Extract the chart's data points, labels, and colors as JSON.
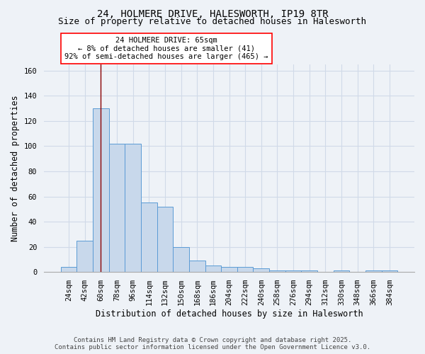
{
  "title_line1": "24, HOLMERE DRIVE, HALESWORTH, IP19 8TR",
  "title_line2": "Size of property relative to detached houses in Halesworth",
  "xlabel": "Distribution of detached houses by size in Halesworth",
  "ylabel": "Number of detached properties",
  "categories": [
    "24sqm",
    "42sqm",
    "60sqm",
    "78sqm",
    "96sqm",
    "114sqm",
    "132sqm",
    "150sqm",
    "168sqm",
    "186sqm",
    "204sqm",
    "222sqm",
    "240sqm",
    "258sqm",
    "276sqm",
    "294sqm",
    "312sqm",
    "330sqm",
    "348sqm",
    "366sqm",
    "384sqm"
  ],
  "values": [
    4,
    25,
    130,
    102,
    102,
    55,
    52,
    20,
    9,
    5,
    4,
    4,
    3,
    1,
    1,
    1,
    0,
    1,
    0,
    1,
    1
  ],
  "bar_color": "#c8d8eb",
  "bar_edge_color": "#5b9bd5",
  "vline_x": 2,
  "vline_color": "#8b0000",
  "annotation_text": "24 HOLMERE DRIVE: 65sqm\n← 8% of detached houses are smaller (41)\n92% of semi-detached houses are larger (465) →",
  "annotation_box_color": "white",
  "annotation_box_edge": "red",
  "ylim": [
    0,
    165
  ],
  "yticks": [
    0,
    20,
    40,
    60,
    80,
    100,
    120,
    140,
    160
  ],
  "background_color": "#eef2f7",
  "grid_color": "#d0dae8",
  "footer_line1": "Contains HM Land Registry data © Crown copyright and database right 2025.",
  "footer_line2": "Contains public sector information licensed under the Open Government Licence v3.0.",
  "title_fontsize": 10,
  "subtitle_fontsize": 9,
  "axis_label_fontsize": 8.5,
  "tick_fontsize": 7.5,
  "annotation_fontsize": 7.5,
  "footer_fontsize": 6.5
}
